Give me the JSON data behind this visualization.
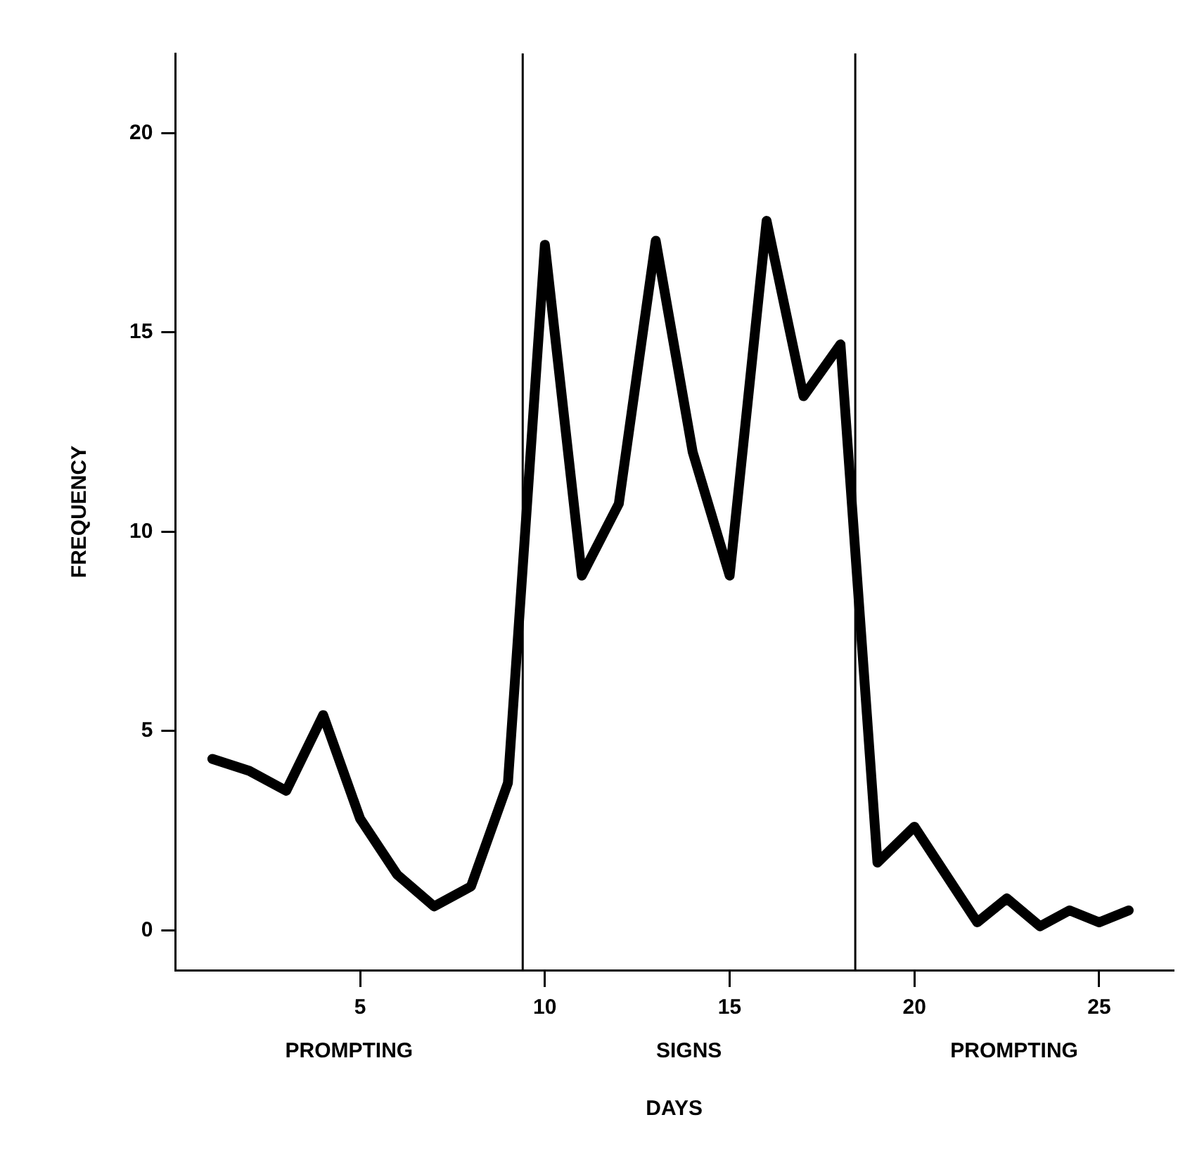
{
  "chart_data": {
    "type": "line",
    "xlabel": "DAYS",
    "ylabel": "FREQUENCY",
    "annotations": [
      "PROMPTING",
      "SIGNS",
      "PROMPTING"
    ],
    "x": [
      1,
      2,
      3,
      4,
      5,
      6,
      7,
      8,
      9,
      10,
      11,
      12,
      13,
      14,
      15,
      16,
      17,
      18,
      19,
      20,
      21.7,
      22.5,
      23.4,
      24.2,
      25,
      25.8
    ],
    "series": [
      {
        "color": "#000000",
        "values": [
          4.3,
          4.0,
          3.5,
          5.4,
          2.8,
          1.4,
          0.6,
          1.1,
          3.7,
          17.2,
          8.9,
          10.7,
          17.3,
          12.0,
          8.9,
          17.8,
          13.4,
          14.7,
          1.7,
          2.6,
          0.2,
          0.8,
          0.1,
          0.5,
          0.2,
          0.5
        ]
      }
    ],
    "xlim": [
      0,
      27
    ],
    "ylim": [
      -1,
      22
    ],
    "xticks": [
      5,
      10,
      15,
      20,
      25
    ],
    "yticks": [
      0,
      5,
      10,
      15,
      20
    ],
    "ref_lines": [
      {
        "axis": "x",
        "value": 9.4,
        "color": "#000000"
      },
      {
        "axis": "x",
        "value": 18.4,
        "color": "#000000"
      }
    ],
    "grid": false,
    "legend": false,
    "marker": "none",
    "line_style": "solid"
  }
}
